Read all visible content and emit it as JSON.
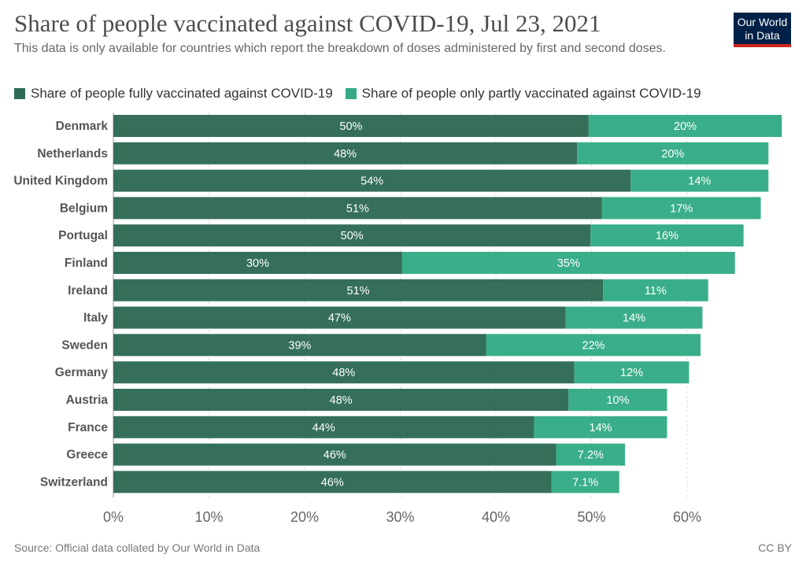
{
  "header": {
    "title": "Share of people vaccinated against COVID-19, Jul 23, 2021",
    "subtitle": "This data is only available for countries which report the breakdown of doses administered by first and second doses.",
    "logo_line1": "Our World",
    "logo_line2": "in Data"
  },
  "footer": {
    "source": "Source: Official data collated by Our World in Data",
    "license": "CC BY"
  },
  "colors": {
    "fully": "#2e6a55",
    "partly": "#34ab86",
    "logo_bg": "#002147",
    "logo_accent": "#ce261e"
  },
  "chart_data": {
    "type": "bar",
    "orientation": "horizontal",
    "stacked": true,
    "title": "Share of people vaccinated against COVID-19, Jul 23, 2021",
    "categories": [
      "Denmark",
      "Netherlands",
      "United Kingdom",
      "Belgium",
      "Portugal",
      "Finland",
      "Ireland",
      "Italy",
      "Sweden",
      "Germany",
      "Austria",
      "France",
      "Greece",
      "Switzerland"
    ],
    "series": [
      {
        "name": "Share of people fully vaccinated against COVID-19",
        "values": [
          49.7,
          48.5,
          54.1,
          51.1,
          49.9,
          30.2,
          51.2,
          47.3,
          39.0,
          48.2,
          47.6,
          44.0,
          46.3,
          45.8
        ],
        "labels": [
          "50%",
          "48%",
          "54%",
          "51%",
          "50%",
          "30%",
          "51%",
          "47%",
          "39%",
          "48%",
          "48%",
          "44%",
          "46%",
          "46%"
        ]
      },
      {
        "name": "Share of people only partly vaccinated against COVID-19",
        "values": [
          20.2,
          20.0,
          14.4,
          16.6,
          16.0,
          34.8,
          11.0,
          14.3,
          22.4,
          12.0,
          10.3,
          13.9,
          7.2,
          7.1
        ],
        "labels": [
          "20%",
          "20%",
          "14%",
          "17%",
          "16%",
          "35%",
          "11%",
          "14%",
          "22%",
          "12%",
          "10%",
          "14%",
          "7.2%",
          "7.1%"
        ]
      }
    ],
    "x_ticks": [
      "0%",
      "10%",
      "20%",
      "30%",
      "40%",
      "50%",
      "60%"
    ],
    "xlim": [
      0,
      70
    ],
    "grid": true,
    "legend_position": "top-left"
  }
}
